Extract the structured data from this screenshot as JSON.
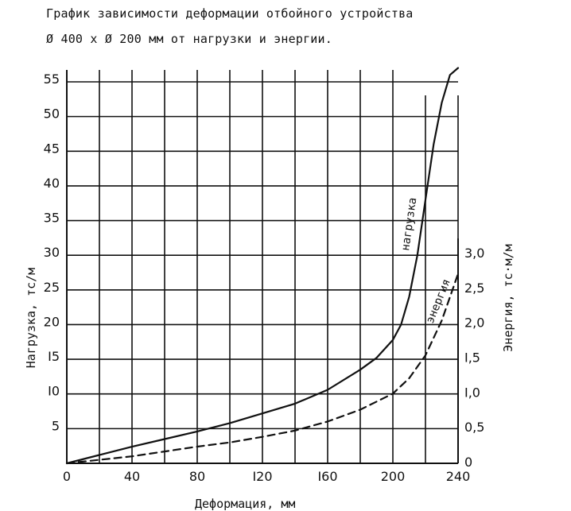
{
  "chart_data": {
    "type": "line",
    "title_lines": [
      "График зависимости деформации отбойного устройства",
      "Ø 400 x Ø 200 мм от нагрузки и энергии."
    ],
    "xlabel": "Деформация, мм",
    "ylabel_left": "Нагрузка, тс/м",
    "ylabel_right": "Энергия, тс·м/м",
    "xlim": [
      0,
      240
    ],
    "ylim_left": [
      0,
      55
    ],
    "ylim_right": [
      0,
      3.0
    ],
    "x_ticks": [
      "0",
      "40",
      "80",
      "I20",
      "I60",
      "200",
      "240"
    ],
    "y_ticks_left": [
      "5",
      "I0",
      "I5",
      "20",
      "25",
      "30",
      "35",
      "40",
      "45",
      "50",
      "55"
    ],
    "y_ticks_right": [
      "0",
      "0,5",
      "I,0",
      "I,5",
      "2,0",
      "2,5",
      "3,0"
    ],
    "grid": true,
    "series": [
      {
        "name": "нагрузка",
        "axis": "left",
        "style": "solid",
        "x": [
          0,
          20,
          40,
          60,
          80,
          100,
          120,
          140,
          160,
          180,
          190,
          200,
          205,
          210,
          215,
          220,
          225,
          230,
          235,
          240
        ],
        "y": [
          0,
          1.2,
          2.4,
          3.5,
          4.6,
          5.8,
          7.2,
          8.6,
          10.6,
          13.5,
          15.2,
          17.8,
          20.0,
          24.0,
          30.0,
          38.0,
          46.0,
          52.0,
          56.0,
          57.0
        ]
      },
      {
        "name": "энергия",
        "axis": "right",
        "style": "dashed",
        "x": [
          0,
          20,
          40,
          60,
          80,
          100,
          120,
          140,
          160,
          180,
          200,
          210,
          220,
          230,
          240
        ],
        "y": [
          0,
          0.05,
          0.1,
          0.17,
          0.24,
          0.3,
          0.38,
          0.47,
          0.6,
          0.77,
          1.0,
          1.22,
          1.55,
          2.05,
          2.72
        ]
      }
    ]
  }
}
